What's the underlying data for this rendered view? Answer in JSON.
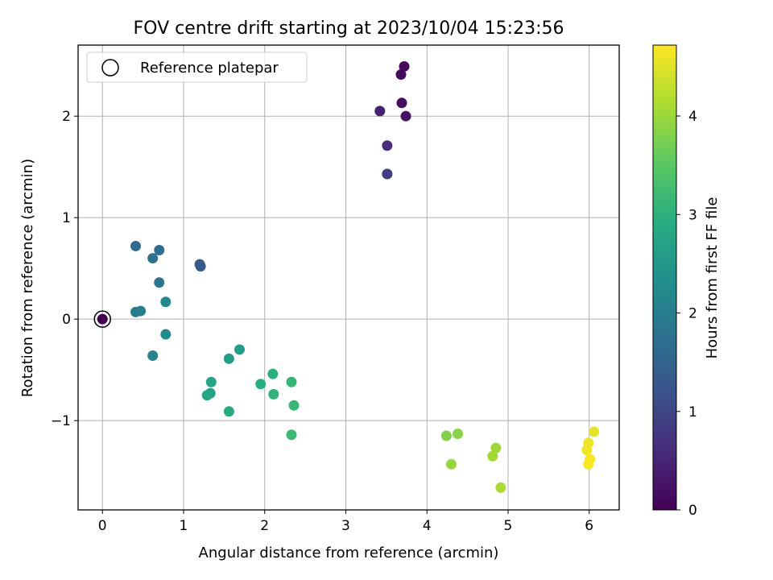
{
  "chart_data": {
    "type": "scatter",
    "title": "FOV centre drift starting at 2023/10/04 15:23:56",
    "xlabel": "Angular distance from reference (arcmin)",
    "ylabel": "Rotation from reference (arcmin)",
    "xlim": [
      -0.3,
      6.37
    ],
    "ylim": [
      -1.88,
      2.7
    ],
    "xticks": [
      0,
      1,
      2,
      3,
      4,
      5,
      6
    ],
    "xtick_labels": [
      "0",
      "1",
      "2",
      "3",
      "4",
      "5",
      "6"
    ],
    "yticks": [
      -1,
      0,
      1,
      2
    ],
    "ytick_labels": [
      "−1",
      "0",
      "1",
      "2"
    ],
    "grid": true,
    "legend": {
      "position": "top-left",
      "label": "Reference platepar"
    },
    "reference_point": {
      "x": 0,
      "y": 0
    },
    "colorbar": {
      "label": "Hours from first FF file",
      "colormap": "viridis",
      "range": [
        0,
        4.72
      ],
      "ticks": [
        0,
        1,
        2,
        3,
        4
      ],
      "tick_labels": [
        "0",
        "1",
        "2",
        "3",
        "4"
      ]
    },
    "points": [
      {
        "x": 0.0,
        "y": 0.0,
        "c": 0.0
      },
      {
        "x": 3.72,
        "y": 2.49,
        "c": 0.08
      },
      {
        "x": 3.68,
        "y": 2.41,
        "c": 0.15
      },
      {
        "x": 3.69,
        "y": 2.13,
        "c": 0.2
      },
      {
        "x": 3.74,
        "y": 2.0,
        "c": 0.25
      },
      {
        "x": 3.42,
        "y": 2.05,
        "c": 0.45
      },
      {
        "x": 3.51,
        "y": 1.71,
        "c": 0.6
      },
      {
        "x": 3.51,
        "y": 1.43,
        "c": 0.8
      },
      {
        "x": 3.51,
        "y": 1.43,
        "c": 0.85
      },
      {
        "x": 1.2,
        "y": 0.54,
        "c": 1.3
      },
      {
        "x": 1.21,
        "y": 0.52,
        "c": 1.35
      },
      {
        "x": 0.41,
        "y": 0.72,
        "c": 1.65
      },
      {
        "x": 0.7,
        "y": 0.68,
        "c": 1.7
      },
      {
        "x": 0.62,
        "y": 0.6,
        "c": 1.75
      },
      {
        "x": 0.7,
        "y": 0.36,
        "c": 1.85
      },
      {
        "x": 0.41,
        "y": 0.07,
        "c": 1.95
      },
      {
        "x": 0.47,
        "y": 0.08,
        "c": 2.0
      },
      {
        "x": 0.78,
        "y": 0.17,
        "c": 2.2
      },
      {
        "x": 0.78,
        "y": -0.15,
        "c": 2.25
      },
      {
        "x": 0.62,
        "y": -0.36,
        "c": 2.1
      },
      {
        "x": 1.69,
        "y": -0.3,
        "c": 2.6
      },
      {
        "x": 1.56,
        "y": -0.39,
        "c": 2.65
      },
      {
        "x": 1.34,
        "y": -0.62,
        "c": 2.75
      },
      {
        "x": 1.33,
        "y": -0.73,
        "c": 2.7
      },
      {
        "x": 1.29,
        "y": -0.75,
        "c": 2.8
      },
      {
        "x": 1.56,
        "y": -0.91,
        "c": 2.85
      },
      {
        "x": 1.95,
        "y": -0.64,
        "c": 2.95
      },
      {
        "x": 2.1,
        "y": -0.54,
        "c": 3.0
      },
      {
        "x": 2.11,
        "y": -0.74,
        "c": 3.05
      },
      {
        "x": 2.33,
        "y": -0.62,
        "c": 3.1
      },
      {
        "x": 2.36,
        "y": -0.85,
        "c": 3.15
      },
      {
        "x": 2.33,
        "y": -1.14,
        "c": 3.2
      },
      {
        "x": 4.24,
        "y": -1.15,
        "c": 3.8
      },
      {
        "x": 4.38,
        "y": -1.13,
        "c": 3.85
      },
      {
        "x": 4.3,
        "y": -1.43,
        "c": 3.95
      },
      {
        "x": 4.85,
        "y": -1.27,
        "c": 4.0
      },
      {
        "x": 4.81,
        "y": -1.35,
        "c": 4.05
      },
      {
        "x": 4.91,
        "y": -1.66,
        "c": 4.1
      },
      {
        "x": 6.06,
        "y": -1.11,
        "c": 4.55
      },
      {
        "x": 5.99,
        "y": -1.22,
        "c": 4.6
      },
      {
        "x": 5.97,
        "y": -1.29,
        "c": 4.62
      },
      {
        "x": 6.01,
        "y": -1.38,
        "c": 4.65
      },
      {
        "x": 5.99,
        "y": -1.43,
        "c": 4.7
      }
    ]
  }
}
